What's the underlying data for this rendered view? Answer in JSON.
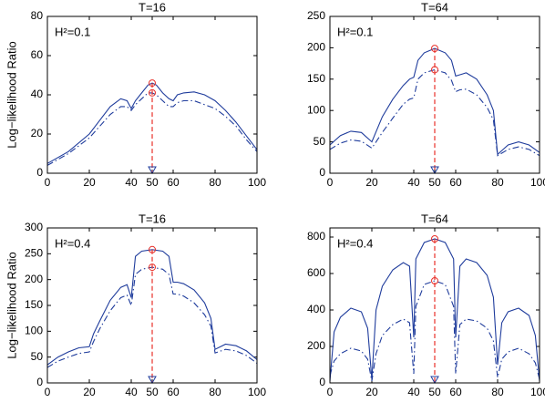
{
  "chart_data": [
    {
      "type": "line",
      "title": "T=16",
      "annotation": "H²=0.1",
      "ylabel": "Log−likelihood Ratio",
      "x": [
        0,
        10,
        20,
        25,
        30,
        35,
        38,
        40,
        42,
        45,
        48,
        50,
        52,
        55,
        58,
        60,
        62,
        65,
        70,
        75,
        80,
        85,
        90,
        95,
        100
      ],
      "series": [
        {
          "color": "#1f3c9c",
          "style": "solid",
          "values": [
            5,
            11,
            20,
            27,
            34,
            38,
            37,
            33,
            37,
            41,
            45,
            46,
            45,
            41,
            38,
            37,
            40,
            41,
            41.5,
            40,
            37,
            32,
            26,
            19,
            12
          ]
        },
        {
          "color": "#1f3c9c",
          "style": "dashdot",
          "values": [
            4,
            10,
            18,
            24,
            30,
            34,
            34,
            32,
            35,
            38,
            41,
            41,
            40,
            37,
            34,
            34,
            36,
            37,
            37,
            35,
            33,
            29,
            24,
            17,
            11
          ]
        }
      ],
      "highlight": {
        "x": 50,
        "values": [
          46,
          41
        ],
        "color": "#e8312a"
      },
      "xlim": [
        0,
        100
      ],
      "xticks": [
        0,
        20,
        40,
        50,
        60,
        80,
        100
      ],
      "ylim": [
        0,
        80
      ],
      "yticks": [
        0,
        20,
        40,
        60,
        80
      ]
    },
    {
      "type": "line",
      "title": "T=64",
      "annotation": "H²=0.1",
      "x": [
        0,
        5,
        10,
        15,
        20,
        25,
        30,
        35,
        38,
        40,
        42,
        45,
        50,
        55,
        58,
        60,
        62,
        65,
        70,
        75,
        78,
        80,
        85,
        90,
        95,
        100
      ],
      "series": [
        {
          "color": "#1f3c9c",
          "style": "solid",
          "values": [
            45,
            60,
            67,
            65,
            50,
            90,
            118,
            140,
            150,
            153,
            180,
            192,
            199,
            192,
            180,
            155,
            157,
            160,
            150,
            125,
            100,
            30,
            45,
            50,
            45,
            33
          ]
        },
        {
          "color": "#1f3c9c",
          "style": "dashdot",
          "values": [
            38,
            48,
            53,
            51,
            40,
            65,
            88,
            110,
            118,
            120,
            150,
            160,
            165,
            160,
            148,
            130,
            133,
            134,
            125,
            105,
            85,
            28,
            38,
            42,
            38,
            28
          ]
        }
      ],
      "highlight": {
        "x": 50,
        "values": [
          199,
          165
        ],
        "color": "#e8312a"
      },
      "xlim": [
        0,
        100
      ],
      "xticks": [
        0,
        20,
        40,
        50,
        60,
        80,
        100
      ],
      "ylim": [
        0,
        250
      ],
      "yticks": [
        0,
        50,
        100,
        150,
        200,
        250
      ]
    },
    {
      "type": "line",
      "title": "T=16",
      "annotation": "H²=0.4",
      "ylabel": "Log−likelihood Ratio",
      "x": [
        0,
        5,
        10,
        15,
        20,
        22,
        25,
        30,
        35,
        38,
        40,
        42,
        45,
        50,
        55,
        58,
        60,
        62,
        65,
        70,
        75,
        78,
        80,
        85,
        90,
        95,
        100
      ],
      "series": [
        {
          "color": "#1f3c9c",
          "style": "solid",
          "values": [
            35,
            50,
            60,
            68,
            70,
            95,
            120,
            160,
            185,
            190,
            165,
            245,
            255,
            258,
            255,
            245,
            195,
            195,
            192,
            180,
            155,
            125,
            65,
            75,
            72,
            62,
            45
          ]
        },
        {
          "color": "#1f3c9c",
          "style": "dashdot",
          "values": [
            30,
            42,
            50,
            57,
            60,
            80,
            105,
            140,
            165,
            170,
            150,
            210,
            220,
            224,
            220,
            210,
            172,
            172,
            168,
            155,
            132,
            110,
            58,
            65,
            62,
            53,
            38
          ]
        }
      ],
      "highlight": {
        "x": 50,
        "values": [
          258,
          224
        ],
        "color": "#e8312a"
      },
      "xlim": [
        0,
        100
      ],
      "xticks": [
        0,
        20,
        40,
        50,
        60,
        80,
        100
      ],
      "ylim": [
        0,
        300
      ],
      "yticks": [
        0,
        50,
        100,
        150,
        200,
        250,
        300
      ]
    },
    {
      "type": "line",
      "title": "T=64",
      "annotation": "H²=0.4",
      "x": [
        0,
        2,
        5,
        10,
        15,
        18,
        20,
        22,
        25,
        30,
        35,
        38,
        40,
        41,
        45,
        50,
        55,
        59,
        60,
        62,
        65,
        70,
        75,
        78,
        80,
        82,
        85,
        90,
        95,
        98,
        100
      ],
      "series": [
        {
          "color": "#1f3c9c",
          "style": "solid",
          "values": [
            10,
            280,
            360,
            410,
            390,
            300,
            20,
            400,
            530,
            620,
            660,
            640,
            250,
            680,
            770,
            790,
            770,
            680,
            250,
            640,
            680,
            660,
            590,
            470,
            100,
            330,
            390,
            410,
            370,
            260,
            10
          ]
        },
        {
          "color": "#1f3c9c",
          "style": "dashdot",
          "values": [
            40,
            120,
            160,
            190,
            175,
            130,
            10,
            160,
            260,
            320,
            350,
            330,
            50,
            420,
            540,
            560,
            540,
            420,
            50,
            320,
            350,
            340,
            300,
            230,
            30,
            130,
            170,
            190,
            160,
            110,
            20
          ]
        }
      ],
      "highlight": {
        "x": 50,
        "values": [
          790,
          560
        ],
        "color": "#e8312a"
      },
      "xlim": [
        0,
        100
      ],
      "xticks": [
        0,
        20,
        40,
        50,
        60,
        80,
        100
      ],
      "ylim": [
        0,
        850
      ],
      "yticks": [
        0,
        200,
        400,
        600,
        800
      ]
    }
  ]
}
